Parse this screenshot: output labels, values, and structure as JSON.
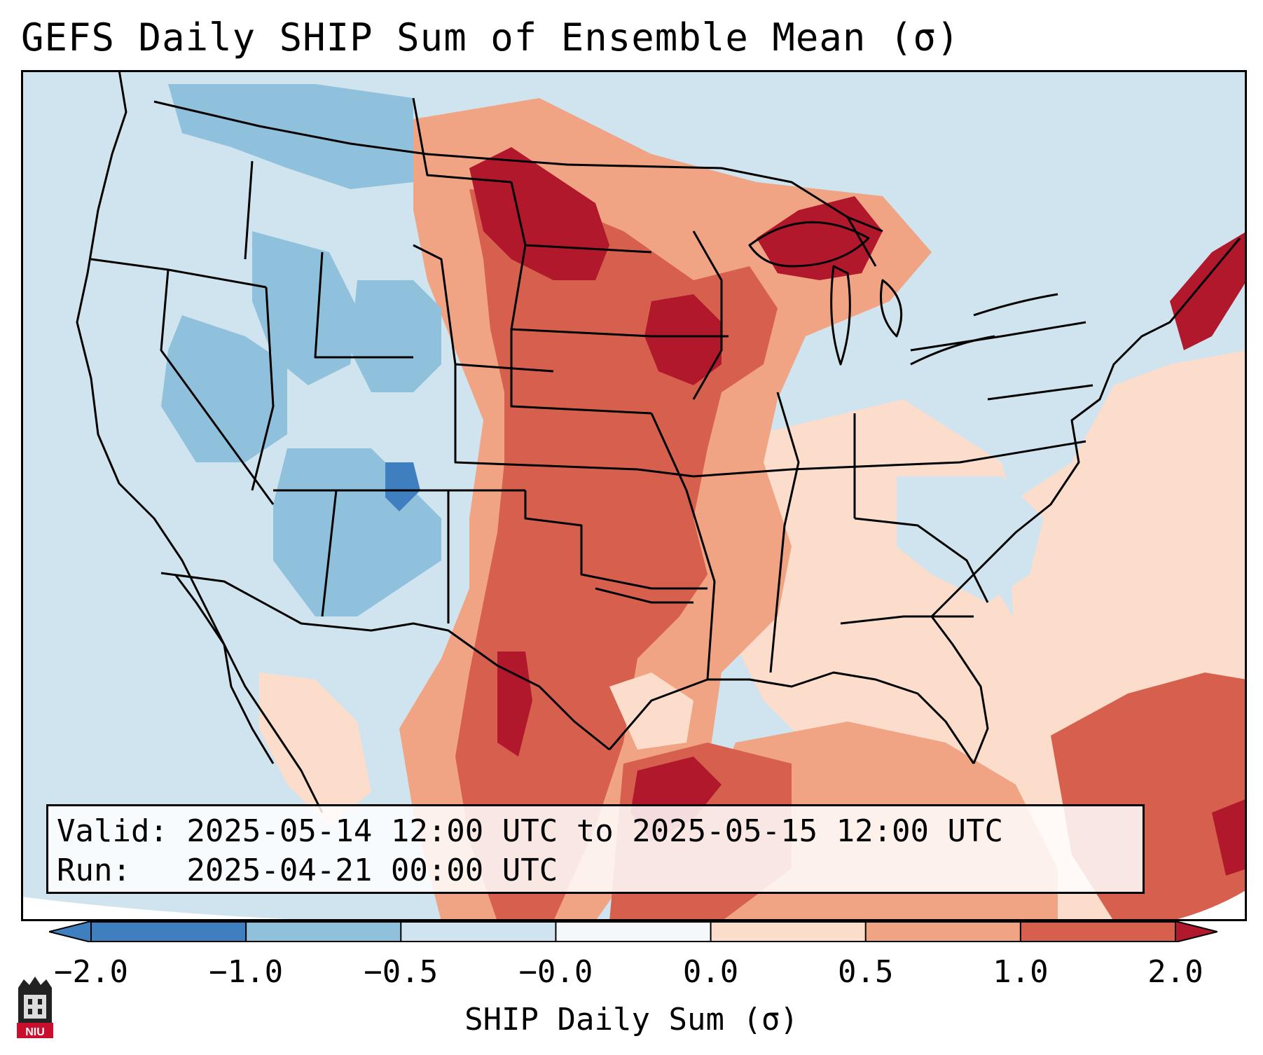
{
  "title": "GEFS Daily SHIP Sum of Ensemble Mean (σ)",
  "info": {
    "valid_line": "Valid: 2025-05-14 12:00 UTC to 2025-05-15 12:00 UTC",
    "run_line": "Run:   2025-04-21 00:00 UTC"
  },
  "colorbar": {
    "label": "SHIP Daily Sum (σ)",
    "ticks": [
      "−2.0",
      "−1.0",
      "−0.5",
      "−0.0",
      "0.0",
      "0.5",
      "1.0",
      "2.0"
    ],
    "colors": [
      "#3f7fbf",
      "#8fc0dc",
      "#d0e4ef",
      "#f4f8fb",
      "#fcdcca",
      "#f0a483",
      "#d6604d",
      "#b2182b"
    ],
    "extend": "both"
  },
  "map": {
    "projection": "Lambert conformal, contiguous United States",
    "colors": {
      "blue_dark": "#3f7fbf",
      "blue_mid": "#8fc0dc",
      "blue_light": "#d0e4ef",
      "white": "#f4f8fb",
      "peach": "#fcdcca",
      "salmon": "#f0a483",
      "red": "#d6604d",
      "dark_red": "#b2182b"
    }
  },
  "logo": {
    "text": "NIU"
  }
}
